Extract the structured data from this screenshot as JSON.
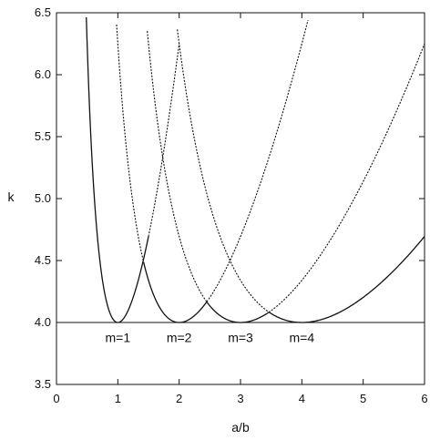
{
  "chart_data": {
    "type": "line",
    "title": "",
    "xlabel": "a/b",
    "ylabel": "k",
    "xlim": [
      0,
      6
    ],
    "ylim": [
      3.5,
      6.5
    ],
    "grid": false,
    "xticks": [
      0,
      1,
      2,
      3,
      4,
      5,
      6
    ],
    "yticks": [
      3.5,
      4.0,
      4.5,
      5.0,
      5.5,
      6.0,
      6.5
    ],
    "xtick_labels": [
      "0",
      "1",
      "2",
      "3",
      "4",
      "5",
      "6"
    ],
    "ytick_labels": [
      "3.5",
      "4.0",
      "4.5",
      "5.0",
      "5.5",
      "6.0",
      "6.5"
    ],
    "reference_line": {
      "y": 4.0
    },
    "series": [
      {
        "m": 1,
        "range": [
          0.48,
          1.5
        ],
        "style": "solid"
      },
      {
        "m": 1,
        "range": [
          1.5,
          2.0
        ],
        "style": "dotted"
      },
      {
        "m": 2,
        "range": [
          0.98,
          1.42
        ],
        "style": "dotted"
      },
      {
        "m": 2,
        "range": [
          1.42,
          2.45
        ],
        "style": "solid"
      },
      {
        "m": 2,
        "range": [
          2.45,
          4.1
        ],
        "style": "dotted"
      },
      {
        "m": 3,
        "range": [
          1.48,
          2.45
        ],
        "style": "dotted"
      },
      {
        "m": 3,
        "range": [
          2.45,
          3.46
        ],
        "style": "solid"
      },
      {
        "m": 3,
        "range": [
          3.46,
          6.0
        ],
        "style": "dotted"
      },
      {
        "m": 4,
        "range": [
          1.97,
          3.46
        ],
        "style": "dotted"
      },
      {
        "m": 4,
        "range": [
          3.46,
          6.0
        ],
        "style": "solid"
      }
    ],
    "annotations": [
      {
        "text": "m=1",
        "x": 1.0,
        "y": 3.88
      },
      {
        "text": "m=2",
        "x": 2.0,
        "y": 3.88
      },
      {
        "text": "m=3",
        "x": 3.0,
        "y": 3.88
      },
      {
        "text": "m=4",
        "x": 4.0,
        "y": 3.88
      }
    ]
  }
}
